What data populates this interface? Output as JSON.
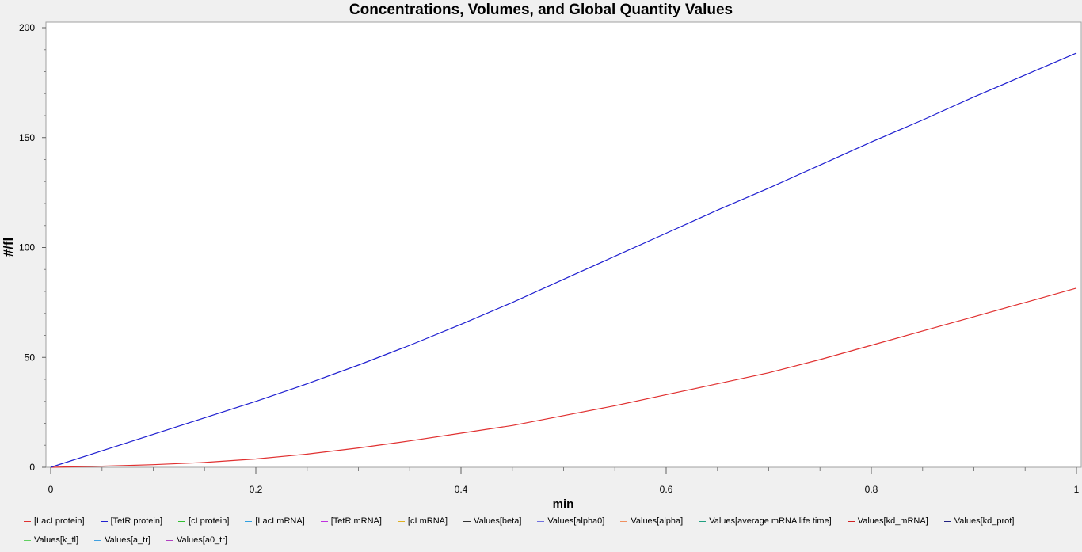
{
  "chart_data": {
    "type": "line",
    "title": "Concentrations, Volumes, and Global Quantity Values",
    "xlabel": "min",
    "ylabel": "#/fl",
    "xlim": [
      0,
      1
    ],
    "ylim": [
      0,
      200
    ],
    "x_ticks": [
      "0",
      "0.2",
      "0.4",
      "0.6",
      "0.8",
      "1"
    ],
    "y_ticks": [
      "0",
      "50",
      "100",
      "150",
      "200"
    ],
    "grid": false,
    "legend_position": "bottom",
    "series": [
      {
        "name": "[LacI protein]",
        "color": "#e03030",
        "x": [
          0,
          0.05,
          0.1,
          0.15,
          0.2,
          0.25,
          0.3,
          0.35,
          0.4,
          0.45,
          0.5,
          0.55,
          0.6,
          0.65,
          0.7,
          0.75,
          0.8,
          0.85,
          0.9,
          0.95,
          1.0
        ],
        "y": [
          0,
          0.5,
          1.2,
          2.2,
          3.8,
          6.0,
          8.8,
          12.0,
          15.5,
          19.0,
          23.5,
          28.0,
          33.0,
          38.0,
          43.0,
          49.0,
          55.5,
          62.0,
          68.5,
          75.0,
          81.5
        ]
      },
      {
        "name": "[TetR protein]",
        "color": "#2020d0",
        "x": [
          0,
          0.05,
          0.1,
          0.15,
          0.2,
          0.25,
          0.3,
          0.35,
          0.4,
          0.45,
          0.5,
          0.55,
          0.6,
          0.65,
          0.7,
          0.75,
          0.8,
          0.85,
          0.9,
          0.95,
          1.0
        ],
        "y": [
          0,
          7.5,
          15.0,
          22.5,
          30.0,
          38.0,
          46.5,
          55.5,
          65.0,
          75.0,
          85.5,
          96.0,
          106.5,
          117.0,
          127.0,
          137.5,
          148.0,
          158.0,
          168.5,
          178.5,
          188.5
        ]
      },
      {
        "name": "[cI protein]",
        "color": "#30c030",
        "x": [],
        "y": []
      },
      {
        "name": "[LacI mRNA]",
        "color": "#30a0e0",
        "x": [],
        "y": []
      },
      {
        "name": "[TetR mRNA]",
        "color": "#c030e0",
        "x": [],
        "y": []
      },
      {
        "name": "[cI mRNA]",
        "color": "#e0b020",
        "x": [],
        "y": []
      },
      {
        "name": "Values[beta]",
        "color": "#303030",
        "x": [],
        "y": []
      },
      {
        "name": "Values[alpha0]",
        "color": "#7070e0",
        "x": [],
        "y": []
      },
      {
        "name": "Values[alpha]",
        "color": "#f09060",
        "x": [],
        "y": []
      },
      {
        "name": "Values[average mRNA life time]",
        "color": "#20a080",
        "x": [],
        "y": []
      },
      {
        "name": "Values[kd_mRNA]",
        "color": "#d02020",
        "x": [],
        "y": []
      },
      {
        "name": "Values[kd_prot]",
        "color": "#202080",
        "x": [],
        "y": []
      },
      {
        "name": "Values[k_tl]",
        "color": "#60d060",
        "x": [],
        "y": []
      },
      {
        "name": "Values[a_tr]",
        "color": "#40a0e0",
        "x": [],
        "y": []
      },
      {
        "name": "Values[a0_tr]",
        "color": "#b040c0",
        "x": [],
        "y": []
      }
    ]
  }
}
